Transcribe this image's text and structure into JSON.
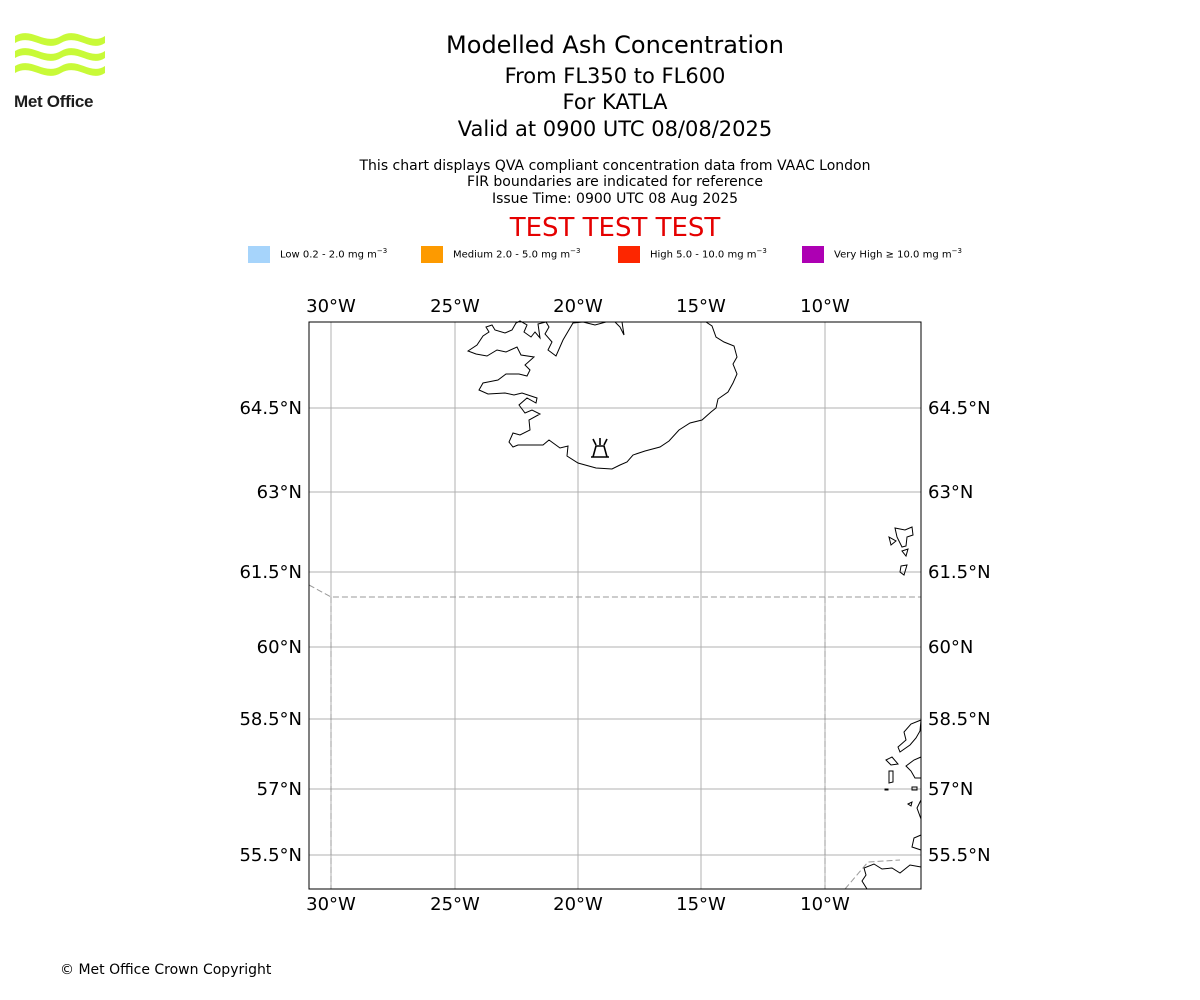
{
  "header": {
    "logo_text": "Met Office",
    "title": "Modelled Ash Concentration",
    "subtitle_levels": "From FL350 to FL600",
    "subtitle_volcano": "For KATLA",
    "subtitle_valid": "Valid at 0900 UTC 08/08/2025",
    "note_qva": "This chart displays QVA compliant concentration data from VAAC London",
    "note_fir": "FIR boundaries are indicated for reference",
    "note_issue": "Issue Time: 0900 UTC 08 Aug 2025",
    "test_banner": "TEST TEST TEST"
  },
  "legend": [
    {
      "label": "Low 0.2 - 2.0 mg m",
      "unit_exp": "−3",
      "color": "#a6d4fb"
    },
    {
      "label": "Medium 2.0 - 5.0 mg m",
      "unit_exp": "−3",
      "color": "#fd9a00"
    },
    {
      "label": "High 5.0 - 10.0 mg m",
      "unit_exp": "−3",
      "color": "#fd2600"
    },
    {
      "label": "Very High  ≥  10.0 mg m",
      "unit_exp": "−3",
      "color": "#ad00b3"
    }
  ],
  "map": {
    "lon_labels": [
      "30°W",
      "25°W",
      "20°W",
      "15°W",
      "10°W"
    ],
    "lat_labels": [
      "64.5°N",
      "63°N",
      "61.5°N",
      "60°N",
      "58.5°N",
      "57°N",
      "55.5°N"
    ],
    "volcano_marker": "volcano-icon",
    "colors": {
      "gridline": "#b0b0b0",
      "fir": "#999999",
      "coast": "#000000"
    }
  },
  "footer": {
    "copyright": "© Met Office Crown Copyright"
  }
}
